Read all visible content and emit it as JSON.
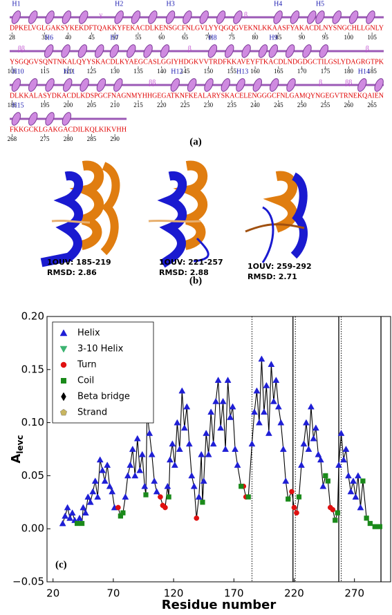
{
  "panel_a": {
    "label": "(a)",
    "rows": [
      {
        "sequence": "DPKELVGLGAKSYKEKDFTQAKKYFEKACDLKENSGCFNLGVLYYQGQGVEKNLKKAASFYAKACDLNYSNGCHLLGNLY",
        "ticks": [
          28,
          35,
          40,
          45,
          50,
          55,
          60,
          65,
          70,
          75,
          80,
          85,
          90,
          95,
          100,
          105
        ],
        "elements": [
          {
            "label": "H1",
            "residues": [
              28,
              45
            ]
          },
          {
            "label": "γ",
            "residues": [
              47,
              47
            ]
          },
          {
            "label": "H2",
            "residues": [
              50,
              60
            ]
          },
          {
            "label": "H3",
            "residues": [
              61,
              76
            ]
          },
          {
            "label": "β",
            "residues": [
              78,
              78
            ]
          },
          {
            "label": "H4",
            "residues": [
              84,
              92
            ]
          },
          {
            "label": "H5",
            "residues": [
              93,
              107
            ]
          }
        ]
      },
      {
        "sequence": "YSGQGVSQNTNKALQYYSKACDLKYAEGCASLGGIYHDGKVVTRDFKKAVEYFTKACDLNDGDGCTILGSLYDAGRGTPK",
        "ticks": [
          108,
          115,
          120,
          125,
          130,
          135,
          140,
          145,
          150,
          155,
          160,
          165,
          170,
          175,
          180,
          185
        ],
        "elements": [
          {
            "label": "ββ",
            "residues": [
              110,
              110
            ]
          },
          {
            "label": "H6",
            "residues": [
              115,
              128
            ]
          },
          {
            "label": "H7",
            "residues": [
              129,
              143
            ]
          },
          {
            "label": "β",
            "residues": [
              146,
              146
            ]
          },
          {
            "label": "H8",
            "residues": [
              150,
              162
            ]
          },
          {
            "label": "H9",
            "residues": [
              163,
              177
            ]
          },
          {
            "label": "β",
            "residues": [
              184,
              184
            ]
          }
        ]
      },
      {
        "sequence": "DLKKALASYDKACDLKDSPGCFNAGNMYHHGEGATKNFKEALARYSKACELENGGGCFNLGAMQYNGEGVTRNEKQAIEN",
        "ticks": [
          188,
          195,
          200,
          205,
          210,
          215,
          220,
          225,
          230,
          235,
          240,
          245,
          250,
          255,
          260,
          265
        ],
        "elements": [
          {
            "label": "H10",
            "residues": [
              188,
              198
            ]
          },
          {
            "label": "H11",
            "residues": [
              199,
              213
            ]
          },
          {
            "label": "ββ",
            "residues": [
              218,
              218
            ]
          },
          {
            "label": "H12",
            "residues": [
              222,
              235
            ]
          },
          {
            "label": "H13",
            "residues": [
              236,
              250
            ]
          },
          {
            "label": "β",
            "residues": [
              254,
              254
            ]
          },
          {
            "label": "ββ",
            "residues": [
              260,
              260
            ]
          },
          {
            "label": "H14",
            "residues": [
              262,
              267
            ]
          }
        ]
      },
      {
        "sequence": "FKKGCKLGAKGACDILKQLKIKVHH",
        "ticks": [
          268,
          275,
          280,
          285,
          290
        ],
        "elements": [
          {
            "label": "H15",
            "residues": [
              268,
              282
            ]
          }
        ]
      }
    ]
  },
  "panel_b": {
    "label": "(b)",
    "structures": [
      {
        "name": "1OUV: 185-219",
        "rmsd": "RMSD: 2.86"
      },
      {
        "name": "1OUV: 221-257",
        "rmsd": "RMSD: 2.88"
      },
      {
        "name": "1OUV: 259-292",
        "rmsd": "RMSD: 2.71"
      }
    ]
  },
  "chart_data": {
    "type": "scatter",
    "panel_label": "(c)",
    "xlabel": "Residue number",
    "ylabel": "A",
    "ylabel_sub": "levc",
    "xlim": [
      15,
      300
    ],
    "ylim": [
      -0.05,
      0.2
    ],
    "xticks": [
      20,
      70,
      120,
      170,
      220,
      270
    ],
    "yticks": [
      {
        "value": -0.05,
        "label": "−0.05"
      },
      {
        "value": 0,
        "label": "0.00"
      },
      {
        "value": 0.05,
        "label": "0.05"
      },
      {
        "value": 0.1,
        "label": "0.10"
      },
      {
        "value": 0.15,
        "label": "0.15"
      },
      {
        "value": 0.2,
        "label": "0.20"
      }
    ],
    "line_color": "#000000",
    "vlines": [
      {
        "value": 185,
        "style": "dotted"
      },
      {
        "value": 219,
        "style": "solid"
      },
      {
        "value": 221,
        "style": "dotted"
      },
      {
        "value": 257,
        "style": "solid"
      },
      {
        "value": 259,
        "style": "dotted"
      },
      {
        "value": 292,
        "style": "solid"
      }
    ],
    "series": [
      {
        "name": "Helix",
        "marker": "triangle-up",
        "color": "#1f1fd6",
        "x": [
          28,
          30,
          32,
          34,
          36,
          38,
          42,
          45,
          47,
          49,
          51,
          53,
          55,
          57,
          59,
          61,
          63,
          65,
          67,
          69,
          71,
          80,
          82,
          84,
          86,
          88,
          90,
          92,
          94,
          96,
          98,
          100,
          102,
          104,
          106,
          115,
          117,
          119,
          121,
          123,
          125,
          127,
          129,
          131,
          133,
          135,
          137,
          141,
          143,
          145,
          147,
          149,
          151,
          153,
          155,
          157,
          159,
          161,
          163,
          165,
          167,
          169,
          171,
          173,
          185,
          187,
          189,
          191,
          193,
          195,
          197,
          199,
          201,
          203,
          205,
          207,
          209,
          211,
          213,
          226,
          228,
          230,
          232,
          234,
          236,
          238,
          240,
          242,
          244,
          257,
          259,
          261,
          263,
          265,
          267,
          269,
          271,
          273,
          275
        ],
        "values": [
          0.005,
          0.012,
          0.02,
          0.01,
          0.015,
          0.008,
          0.01,
          0.02,
          0.015,
          0.03,
          0.025,
          0.035,
          0.045,
          0.03,
          0.065,
          0.055,
          0.045,
          0.06,
          0.04,
          0.035,
          0.02,
          0.03,
          0.05,
          0.06,
          0.075,
          0.05,
          0.085,
          0.055,
          0.07,
          0.04,
          0.11,
          0.09,
          0.07,
          0.045,
          0.035,
          0.04,
          0.065,
          0.08,
          0.06,
          0.1,
          0.075,
          0.13,
          0.095,
          0.115,
          0.08,
          0.05,
          0.04,
          0.03,
          0.07,
          0.045,
          0.09,
          0.07,
          0.11,
          0.08,
          0.12,
          0.14,
          0.095,
          0.12,
          0.075,
          0.14,
          0.105,
          0.115,
          0.075,
          0.06,
          0.08,
          0.11,
          0.13,
          0.1,
          0.16,
          0.11,
          0.135,
          0.09,
          0.155,
          0.12,
          0.14,
          0.115,
          0.1,
          0.075,
          0.045,
          0.06,
          0.08,
          0.1,
          0.075,
          0.115,
          0.085,
          0.095,
          0.07,
          0.065,
          0.04,
          0.06,
          0.09,
          0.065,
          0.075,
          0.05,
          0.035,
          0.045,
          0.03,
          0.05,
          0.02
        ]
      },
      {
        "name": "3-10 Helix",
        "marker": "triangle-down",
        "color": "#3cb371",
        "x": [],
        "values": []
      },
      {
        "name": "Turn",
        "marker": "circle",
        "color": "#e01010",
        "x": [
          74,
          109,
          111,
          113,
          139,
          178,
          180,
          218,
          220,
          222,
          250,
          252
        ],
        "values": [
          0.02,
          0.03,
          0.022,
          0.02,
          0.01,
          0.04,
          0.03,
          0.035,
          0.02,
          0.015,
          0.02,
          0.018
        ]
      },
      {
        "name": "Coil",
        "marker": "square",
        "color": "#1a8a1a",
        "x": [
          40,
          44,
          76,
          78,
          97,
          116,
          144,
          176,
          182,
          215,
          224,
          246,
          248,
          254,
          256,
          277,
          280,
          283,
          287,
          291
        ],
        "values": [
          0.005,
          0.005,
          0.012,
          0.015,
          0.032,
          0.03,
          0.025,
          0.04,
          0.03,
          0.028,
          0.03,
          0.05,
          0.045,
          0.008,
          0.015,
          0.045,
          0.01,
          0.005,
          0.002,
          0.002
        ]
      },
      {
        "name": "Beta bridge",
        "marker": "diamond",
        "color": "#000000",
        "x": [],
        "values": []
      },
      {
        "name": "Strand",
        "marker": "pentagon",
        "color": "#c8b560",
        "x": [],
        "values": []
      }
    ]
  }
}
